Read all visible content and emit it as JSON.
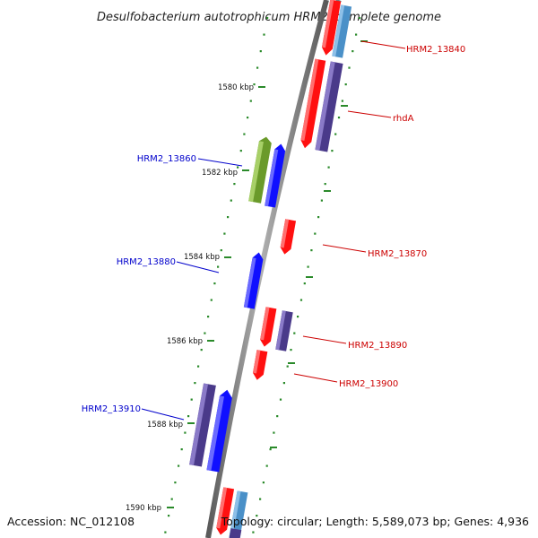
{
  "title": "Desulfobacterium autotrophicum HRM2, complete genome",
  "footer": {
    "accession": "Accession: NC_012108",
    "summary": "Topology: circular; Length: 5,589,073 bp; Genes: 4,936"
  },
  "colors": {
    "backbone": "#888888",
    "dots": "#2a8a2a",
    "red_gene": "#ff1010",
    "blue_gene": "#1010ff",
    "navy_gene": "#4a3a8a",
    "steel_gene": "#4a90c8",
    "olive_gene": "#6a9a2a",
    "label_red": "#cc0000",
    "label_blue": "#0000cc"
  },
  "ticks": [
    {
      "label": "1580 kbp"
    },
    {
      "label": "1582 kbp"
    },
    {
      "label": "1584 kbp"
    },
    {
      "label": "1586 kbp"
    },
    {
      "label": "1588 kbp"
    },
    {
      "label": "1590 kbp"
    }
  ],
  "gene_labels": [
    {
      "text": "HRM2_13840",
      "color": "red"
    },
    {
      "text": "rhdA",
      "color": "red"
    },
    {
      "text": "HRM2_13860",
      "color": "blue"
    },
    {
      "text": "HRM2_13870",
      "color": "red"
    },
    {
      "text": "HRM2_13880",
      "color": "blue"
    },
    {
      "text": "HRM2_13890",
      "color": "red"
    },
    {
      "text": "HRM2_13900",
      "color": "red"
    },
    {
      "text": "HRM2_13910",
      "color": "blue"
    }
  ]
}
